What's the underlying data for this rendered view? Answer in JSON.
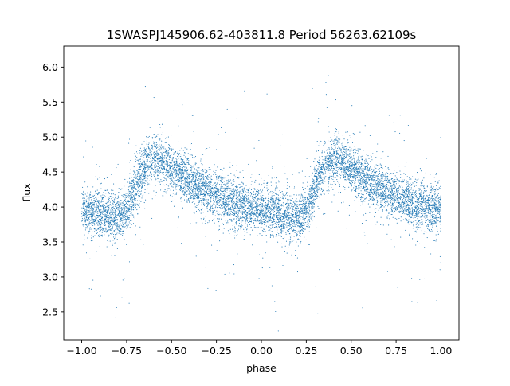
{
  "chart_data": {
    "type": "scatter",
    "title": "1SWASPJ145906.62-403811.8 Period 56263.62109s",
    "xlabel": "phase",
    "ylabel": "flux",
    "xlim": [
      -1.1,
      1.1
    ],
    "ylim": [
      2.1,
      6.3
    ],
    "xticks": [
      -1.0,
      -0.75,
      -0.5,
      -0.25,
      0.0,
      0.25,
      0.5,
      0.75,
      1.0
    ],
    "xtick_labels": [
      "−1.00",
      "−0.75",
      "−0.50",
      "−0.25",
      "0.00",
      "0.25",
      "0.50",
      "0.75",
      "1.00"
    ],
    "yticks": [
      2.5,
      3.0,
      3.5,
      4.0,
      4.5,
      5.0,
      5.5,
      6.0
    ],
    "ytick_labels": [
      "2.5",
      "3.0",
      "3.5",
      "4.0",
      "4.5",
      "5.0",
      "5.5",
      "6.0"
    ],
    "marker_color": "#1f77b4",
    "grid": false,
    "series": [
      {
        "x": [
          -1.0,
          -0.95,
          -0.9,
          -0.85,
          -0.8,
          -0.75,
          -0.72,
          -0.7,
          -0.65,
          -0.6,
          -0.55,
          -0.5,
          -0.45,
          -0.4,
          -0.35,
          -0.3,
          -0.25,
          -0.2,
          -0.15,
          -0.1,
          -0.05,
          0.0,
          0.05,
          0.1,
          0.15,
          0.2,
          0.25,
          0.28,
          0.3,
          0.35,
          0.4,
          0.45,
          0.5,
          0.55,
          0.6,
          0.65,
          0.7,
          0.75,
          0.8,
          0.85,
          0.9,
          0.95,
          1.0
        ],
        "y": [
          3.95,
          3.92,
          3.9,
          3.88,
          3.84,
          3.95,
          4.15,
          4.3,
          4.55,
          4.7,
          4.65,
          4.55,
          4.45,
          4.35,
          4.28,
          4.22,
          4.15,
          4.1,
          4.05,
          4.02,
          3.98,
          3.95,
          3.93,
          3.9,
          3.87,
          3.84,
          3.95,
          4.15,
          4.3,
          4.55,
          4.7,
          4.65,
          4.55,
          4.45,
          4.35,
          4.28,
          4.22,
          4.15,
          4.1,
          4.05,
          4.02,
          3.98,
          3.95
        ]
      }
    ]
  }
}
